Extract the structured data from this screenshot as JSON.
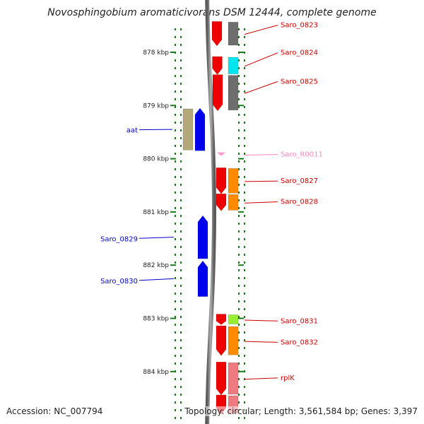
{
  "title": "Novosphingobium aromaticivorans DSM 12444, complete genome",
  "footer": {
    "accession": "Accession: NC_007794",
    "topology": "Topology: circular; Length: 3,561,584 bp; Genes: 3,397"
  },
  "colors": {
    "backbone": "#8c8c8c",
    "tick": "#1a7a1a",
    "forward_label": "#0000cc",
    "reverse_label": "#cc0000",
    "rna_label": "#ff88bb"
  },
  "axis": {
    "unit": "kbp",
    "ticks": [
      {
        "kbp": 878,
        "label": "878 kbp"
      },
      {
        "kbp": 879,
        "label": "879 kbp"
      },
      {
        "kbp": 880,
        "label": "880 kbp"
      },
      {
        "kbp": 881,
        "label": "881 kbp"
      },
      {
        "kbp": 882,
        "label": "882 kbp"
      },
      {
        "kbp": 883,
        "label": "883 kbp"
      },
      {
        "kbp": 884,
        "label": "884 kbp"
      }
    ]
  },
  "genes": [
    {
      "name": "Saro_0823",
      "strand": "reverse",
      "start_kbp": 877.42,
      "end_kbp": 877.88,
      "color": "#ee0000",
      "cog_color": "#6e6e6e"
    },
    {
      "name": "Saro_0824",
      "strand": "reverse",
      "start_kbp": 878.08,
      "end_kbp": 878.42,
      "color": "#ee0000",
      "cog_color": "#00e5ee"
    },
    {
      "name": "Saro_0825",
      "strand": "reverse",
      "start_kbp": 878.42,
      "end_kbp": 879.1,
      "color": "#ee0000",
      "cog_color": "#6e6e6e"
    },
    {
      "name": "aat",
      "strand": "forward",
      "start_kbp": 879.05,
      "end_kbp": 879.85,
      "color": "#0000ee",
      "cog_color": "#b3a878"
    },
    {
      "name": "Saro_R0011",
      "strand": "reverse",
      "start_kbp": 879.88,
      "end_kbp": 879.96,
      "color": "#ff99cc",
      "cog_color": null
    },
    {
      "name": "Saro_0827",
      "strand": "reverse",
      "start_kbp": 880.17,
      "end_kbp": 880.66,
      "color": "#ee0000",
      "cog_color": "#ff8c00"
    },
    {
      "name": "Saro_0828",
      "strand": "reverse",
      "start_kbp": 880.66,
      "end_kbp": 880.98,
      "color": "#ee0000",
      "cog_color": "#ff8c00"
    },
    {
      "name": "Saro_0829",
      "strand": "forward",
      "start_kbp": 881.07,
      "end_kbp": 881.88,
      "color": "#0000ee",
      "cog_color": null
    },
    {
      "name": "Saro_0830",
      "strand": "forward",
      "start_kbp": 881.92,
      "end_kbp": 882.59,
      "color": "#0000ee",
      "cog_color": null
    },
    {
      "name": "Saro_0831",
      "strand": "reverse",
      "start_kbp": 882.92,
      "end_kbp": 883.12,
      "color": "#ee0000",
      "cog_color": "#99ee33"
    },
    {
      "name": "Saro_0832",
      "strand": "reverse",
      "start_kbp": 883.14,
      "end_kbp": 883.7,
      "color": "#ee0000",
      "cog_color": "#ff8c00"
    },
    {
      "name": "rplK",
      "strand": "reverse",
      "start_kbp": 883.82,
      "end_kbp": 884.44,
      "color": "#ee0000",
      "cog_color": "#ee7b80"
    },
    {
      "name": "",
      "strand": "reverse",
      "start_kbp": 884.44,
      "end_kbp": 884.8,
      "color": "#ee0000",
      "cog_color": "#ee7b80"
    }
  ],
  "labels": [
    {
      "text": "Saro_0823",
      "gene": "Saro_0823",
      "side": "right",
      "kbp_pos": 877.45,
      "color": "#cc0000"
    },
    {
      "text": "Saro_0824",
      "gene": "Saro_0824",
      "side": "right",
      "kbp_pos": 877.97,
      "color": "#cc0000"
    },
    {
      "text": "Saro_0825",
      "gene": "Saro_0825",
      "side": "right",
      "kbp_pos": 878.51,
      "color": "#cc0000"
    },
    {
      "text": "aat",
      "gene": "aat",
      "side": "left",
      "kbp_pos": 879.43,
      "color": "#0000cc"
    },
    {
      "text": "Saro_R0011",
      "gene": "Saro_R0011",
      "side": "right",
      "kbp_pos": 879.88,
      "color": "#ff88bb"
    },
    {
      "text": "Saro_0827",
      "gene": "Saro_0827",
      "side": "right",
      "kbp_pos": 880.38,
      "color": "#cc0000"
    },
    {
      "text": "Saro_0828",
      "gene": "Saro_0828",
      "side": "right",
      "kbp_pos": 880.77,
      "color": "#cc0000"
    },
    {
      "text": "Saro_0829",
      "gene": "Saro_0829",
      "side": "left",
      "kbp_pos": 881.47,
      "color": "#0000cc"
    },
    {
      "text": "Saro_0830",
      "gene": "Saro_0830",
      "side": "left",
      "kbp_pos": 882.26,
      "color": "#0000cc"
    },
    {
      "text": "Saro_0831",
      "gene": "Saro_0831",
      "side": "right",
      "kbp_pos": 883.01,
      "color": "#cc0000"
    },
    {
      "text": "Saro_0832",
      "gene": "Saro_0832",
      "side": "right",
      "kbp_pos": 883.41,
      "color": "#cc0000"
    },
    {
      "text": "rplK",
      "gene": "rplK",
      "side": "right",
      "kbp_pos": 884.08,
      "color": "#cc0000"
    }
  ]
}
